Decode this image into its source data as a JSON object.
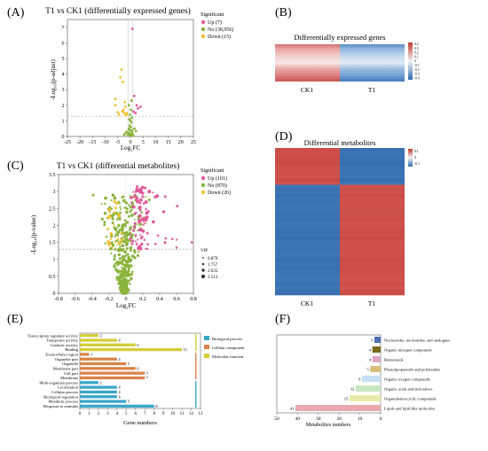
{
  "panels": {
    "A": {
      "label": "(A)",
      "chart_data": {
        "type": "scatter",
        "title": "T1 vs CK1 (differentially expressed genes)",
        "xlabel": "Log₂FC",
        "ylabel": "-Log₁₀(p-adjust)",
        "xlim": [
          -25,
          25
        ],
        "ylim": [
          0,
          7.5
        ],
        "xticks": [
          -25,
          -20,
          -15,
          -10,
          -5,
          0,
          5,
          10,
          15,
          20,
          25
        ],
        "yticks": [
          0,
          1,
          2,
          3,
          4,
          5,
          6,
          7
        ],
        "legend_title": "Significant",
        "legend_position": "top-right",
        "thresholds": {
          "y": 1.3,
          "x": [
            -1,
            1
          ]
        },
        "series": [
          {
            "name": "Up (7)",
            "color": "#e05a9a",
            "points": [
              [
                0.8,
                6.9
              ],
              [
                1.5,
                2.6
              ],
              [
                2.5,
                2.0
              ],
              [
                3,
                1.8
              ],
              [
                2,
                1.5
              ],
              [
                1.2,
                1.6
              ],
              [
                4,
                1.9
              ]
            ]
          },
          {
            "name": "No (38,956)",
            "color": "#8ab43c",
            "points": [
              [
                0,
                0.05
              ],
              [
                -0.3,
                0.1
              ],
              [
                0.2,
                0.15
              ],
              [
                0.4,
                0.08
              ],
              [
                -0.5,
                0.2
              ],
              [
                0.6,
                0.3
              ],
              [
                -0.2,
                0.4
              ],
              [
                0.1,
                0.6
              ],
              [
                -0.7,
                0.5
              ],
              [
                0.3,
                0.9
              ],
              [
                -0.4,
                1.1
              ],
              [
                0.5,
                1.2
              ],
              [
                -0.1,
                1.4
              ],
              [
                0.2,
                1.7
              ],
              [
                -0.6,
                2.0
              ],
              [
                0.4,
                2.3
              ],
              [
                -0.3,
                0.7
              ],
              [
                0.7,
                0.4
              ],
              [
                -0.8,
                0.25
              ],
              [
                0.9,
                0.15
              ],
              [
                -1.0,
                0.1
              ],
              [
                1.1,
                0.05
              ],
              [
                -1.5,
                0.3
              ],
              [
                1.6,
                0.5
              ],
              [
                -2.0,
                0.2
              ],
              [
                2.2,
                0.35
              ],
              [
                -2.5,
                0.12
              ],
              [
                0.0,
                1.0
              ]
            ]
          },
          {
            "name": "Down (15)",
            "color": "#f2c12e",
            "points": [
              [
                -3.5,
                4.3
              ],
              [
                -4,
                3.8
              ],
              [
                -3,
                3.5
              ],
              [
                -6,
                2.4
              ],
              [
                -6,
                2.0
              ],
              [
                -2.2,
                2.2
              ],
              [
                -2,
                1.9
              ],
              [
                -2.8,
                1.7
              ],
              [
                -3.2,
                1.6
              ],
              [
                -1.5,
                1.5
              ],
              [
                -4.5,
                1.4
              ],
              [
                -1.8,
                1.35
              ],
              [
                -2.5,
                1.5
              ],
              [
                -5,
                1.55
              ],
              [
                -1.3,
                1.45
              ]
            ]
          }
        ]
      }
    },
    "B": {
      "label": "(B)",
      "chart_data": {
        "type": "heatmap",
        "title": "Differentially expressed genes",
        "columns": [
          "CK1",
          "T1"
        ],
        "scale_labels": [
          "0.4",
          "0.3",
          "0.2",
          "0.1",
          "0",
          "-0.1",
          "-0.2",
          "-0.3",
          "-0.4"
        ]
      }
    },
    "C": {
      "label": "(C)",
      "chart_data": {
        "type": "scatter",
        "title": "T1 vs CK1 (differential metabolites)",
        "xlabel": "Log₂FC",
        "ylabel": "-Log₁₀(p-value)",
        "xlim": [
          -0.8,
          0.8
        ],
        "ylim": [
          0,
          3.5
        ],
        "xticks": [
          -0.8,
          -0.6,
          -0.4,
          -0.2,
          0,
          0.2,
          0.4,
          0.6,
          0.8
        ],
        "yticks": [
          0,
          0.5,
          1,
          1.5,
          2,
          2.5,
          3,
          3.5
        ],
        "legend_title": "Significant",
        "legend_position": "top-right",
        "thresholds": {
          "y": 1.3
        },
        "size_legend_title": "VIP",
        "size_legend": [
          "0.879",
          "1.757",
          "2.635",
          "3.513"
        ],
        "series": [
          {
            "name": "Up (101)",
            "color": "#e05a9a"
          },
          {
            "name": "No (870)",
            "color": "#8ab43c"
          },
          {
            "name": "Down (26)",
            "color": "#f2c12e"
          }
        ]
      }
    },
    "D": {
      "label": "(D)",
      "chart_data": {
        "type": "heatmap",
        "title": "Differential metabolites",
        "columns": [
          "CK1",
          "T1"
        ],
        "scale_labels": [
          "0.1",
          "0",
          "-0.1"
        ]
      }
    },
    "E": {
      "label": "(E)",
      "chart_data": {
        "type": "bar",
        "orientation": "horizontal",
        "xlabel": "Gene numbers",
        "xlim": [
          0,
          13
        ],
        "xticks": [
          0,
          1,
          2,
          3,
          4,
          5,
          6,
          7,
          8,
          9,
          10,
          11,
          12,
          13
        ],
        "legend_position": "right",
        "groups": [
          {
            "name": "Biological process",
            "color": "#3aa6c8"
          },
          {
            "name": "Cellular component",
            "color": "#d9844a"
          },
          {
            "name": "Molecular function",
            "color": "#d4cd3a"
          }
        ],
        "categories": [
          "Transcription regulator activity",
          "Transporter activity",
          "Catalytic activity",
          "Binding",
          "Extracellular region",
          "Organelle part",
          "Organelle",
          "Membrane part",
          "Cell part",
          "Membrane",
          "Multi-organism process",
          "Localization",
          "Cellular process",
          "Biological regulation",
          "Metabolic process",
          "Response to stimulus"
        ],
        "values": [
          2,
          4,
          6,
          11,
          1,
          4,
          5,
          6,
          7,
          7,
          2,
          4,
          4,
          4,
          5,
          8
        ],
        "category_group": [
          2,
          2,
          2,
          2,
          1,
          1,
          1,
          1,
          1,
          1,
          0,
          0,
          0,
          0,
          0,
          0
        ]
      }
    },
    "F": {
      "label": "(F)",
      "chart_data": {
        "type": "bar",
        "orientation": "horizontal",
        "xlabel": "Metabolites numbers",
        "xlim": [
          50,
          0
        ],
        "xticks": [
          50,
          40,
          30,
          20,
          10,
          0
        ],
        "categories": [
          "Nucleosides, nucleotides, and analogues",
          "Organic nitrogen compounds",
          "Benzenoids",
          "Phenylpropanoids and polyketides",
          "Organic oxygen compounds",
          "Organic acids and derivatives",
          "Organoheterocyclic compounds",
          "Lipids and lipid-like molecules"
        ],
        "values": [
          3,
          4,
          4,
          5,
          9,
          12,
          15,
          41
        ],
        "colors": [
          "#4e6fb0",
          "#7a6a1e",
          "#d8a8c4",
          "#d7c07c",
          "#c6dff2",
          "#c6e7c0",
          "#e8eba8",
          "#e7a8ae"
        ]
      }
    }
  }
}
